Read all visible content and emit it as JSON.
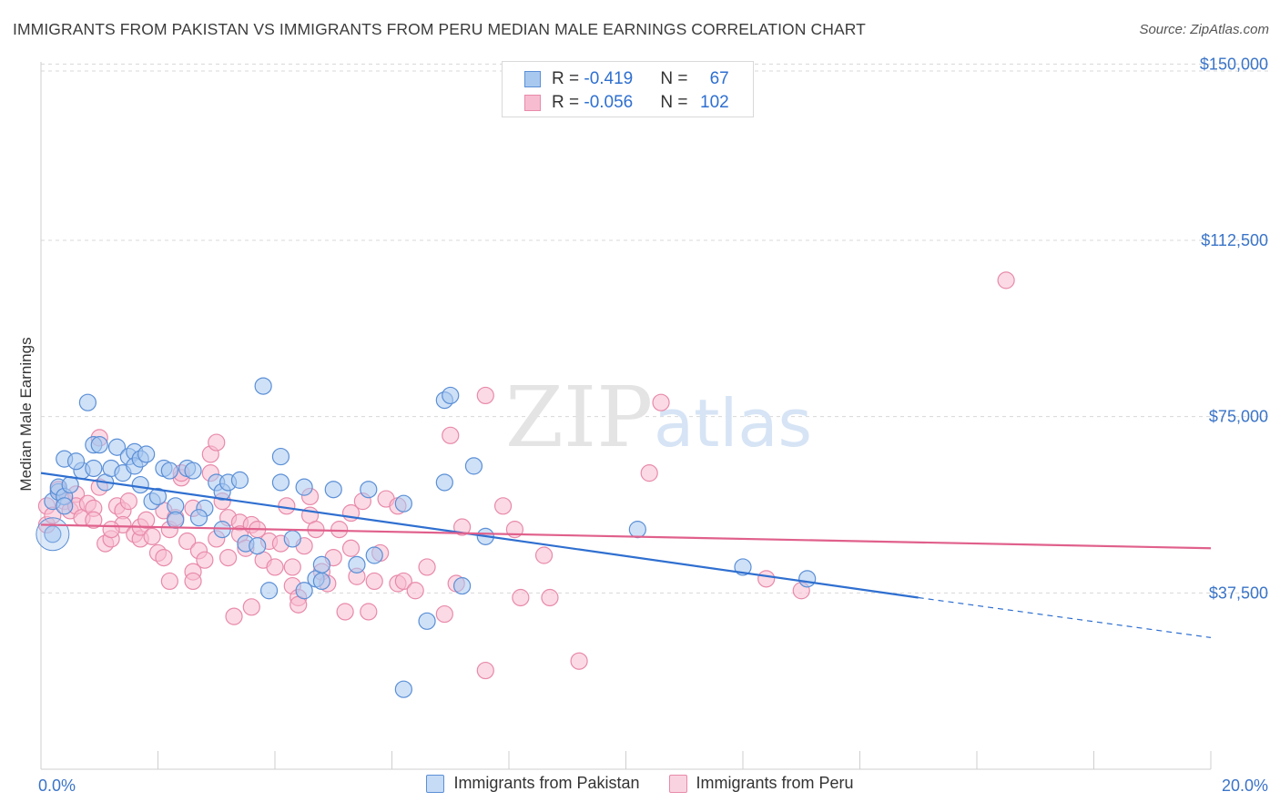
{
  "title": "IMMIGRANTS FROM PAKISTAN VS IMMIGRANTS FROM PERU MEDIAN MALE EARNINGS CORRELATION CHART",
  "source": "Source: ZipAtlas.com",
  "watermark": {
    "zip": "ZIP",
    "atlas": "atlas"
  },
  "legend": {
    "rows": [
      {
        "r_label": "R = ",
        "r_value": "-0.419",
        "n_label": "N = ",
        "n_value": "67"
      },
      {
        "r_label": "R = ",
        "r_value": "-0.056",
        "n_label": "N = ",
        "n_value": "102"
      }
    ]
  },
  "colors": {
    "pakistan_fill": "#a8c8f0",
    "pakistan_stroke": "#5b8fd6",
    "pakistan_line": "#2f6fd0",
    "peru_fill": "#f7bcd0",
    "peru_stroke": "#e88aaa",
    "peru_line": "#e0608c",
    "grid": "#d8d8d8",
    "tick_label": "#3a74c8"
  },
  "chart_data": {
    "type": "scatter",
    "title": "IMMIGRANTS FROM PAKISTAN VS IMMIGRANTS FROM PERU MEDIAN MALE EARNINGS CORRELATION CHART",
    "xlabel": "",
    "ylabel": "Median Male Earnings",
    "xlim": [
      0,
      20
    ],
    "ylim": [
      0,
      152000
    ],
    "x_tick_labels": [
      "0.0%",
      "20.0%"
    ],
    "y_ticks": [
      37500,
      75000,
      112500,
      150000
    ],
    "y_tick_labels": [
      "$37,500",
      "$75,000",
      "$112,500",
      "$150,000"
    ],
    "grid": true,
    "legend_position": "top-center",
    "series": [
      {
        "name": "Immigrants from Pakistan",
        "r": -0.419,
        "n": 67,
        "trend": {
          "x0": 0,
          "y0": 63000,
          "x1": 15,
          "y1": 36500,
          "dashed_to_x": 20,
          "dashed_to_y": 28000
        },
        "points": [
          [
            0.2,
            50000
          ],
          [
            0.2,
            57000
          ],
          [
            0.3,
            59000
          ],
          [
            0.3,
            60000
          ],
          [
            0.4,
            58000
          ],
          [
            0.5,
            60500
          ],
          [
            0.4,
            56000
          ],
          [
            0.8,
            78000
          ],
          [
            0.4,
            66000
          ],
          [
            0.7,
            63500
          ],
          [
            0.9,
            64000
          ],
          [
            0.6,
            65500
          ],
          [
            0.9,
            69000
          ],
          [
            1.0,
            69000
          ],
          [
            1.1,
            61000
          ],
          [
            1.2,
            64000
          ],
          [
            1.3,
            68500
          ],
          [
            1.4,
            63000
          ],
          [
            1.5,
            66500
          ],
          [
            1.6,
            67500
          ],
          [
            1.6,
            64500
          ],
          [
            1.7,
            66000
          ],
          [
            1.8,
            67000
          ],
          [
            1.7,
            60500
          ],
          [
            1.9,
            57000
          ],
          [
            2.0,
            58000
          ],
          [
            2.1,
            64000
          ],
          [
            2.2,
            63500
          ],
          [
            2.3,
            56000
          ],
          [
            2.5,
            64000
          ],
          [
            2.6,
            63500
          ],
          [
            3.0,
            61000
          ],
          [
            3.1,
            59000
          ],
          [
            2.8,
            55500
          ],
          [
            2.3,
            53000
          ],
          [
            2.7,
            53500
          ],
          [
            3.1,
            51000
          ],
          [
            3.2,
            61000
          ],
          [
            3.4,
            61500
          ],
          [
            3.5,
            48000
          ],
          [
            3.7,
            47500
          ],
          [
            3.8,
            81500
          ],
          [
            3.9,
            38000
          ],
          [
            4.1,
            66500
          ],
          [
            4.1,
            61000
          ],
          [
            4.3,
            49000
          ],
          [
            4.5,
            60000
          ],
          [
            4.5,
            38000
          ],
          [
            4.7,
            40500
          ],
          [
            4.8,
            40000
          ],
          [
            4.8,
            43500
          ],
          [
            5.0,
            59500
          ],
          [
            5.4,
            43500
          ],
          [
            5.7,
            45500
          ],
          [
            5.6,
            59500
          ],
          [
            6.2,
            56500
          ],
          [
            6.6,
            31500
          ],
          [
            6.9,
            61000
          ],
          [
            6.9,
            78500
          ],
          [
            7.0,
            79500
          ],
          [
            7.2,
            39000
          ],
          [
            7.4,
            64500
          ],
          [
            7.6,
            49500
          ],
          [
            10.2,
            51000
          ],
          [
            12.0,
            43000
          ],
          [
            13.1,
            40500
          ],
          [
            6.2,
            17000
          ]
        ]
      },
      {
        "name": "Immigrants from Peru",
        "r": -0.056,
        "n": 102,
        "trend": {
          "x0": 0,
          "y0": 52000,
          "x1": 20,
          "y1": 47000
        },
        "points": [
          [
            0.1,
            56000
          ],
          [
            0.1,
            52000
          ],
          [
            0.2,
            54000
          ],
          [
            0.3,
            59500
          ],
          [
            0.4,
            57000
          ],
          [
            0.5,
            55000
          ],
          [
            0.6,
            58500
          ],
          [
            0.6,
            56000
          ],
          [
            0.7,
            53500
          ],
          [
            0.8,
            56500
          ],
          [
            0.9,
            55500
          ],
          [
            1.0,
            60000
          ],
          [
            0.9,
            53000
          ],
          [
            1.0,
            70500
          ],
          [
            1.1,
            48000
          ],
          [
            1.2,
            49000
          ],
          [
            1.3,
            56000
          ],
          [
            1.4,
            55000
          ],
          [
            1.4,
            52000
          ],
          [
            1.5,
            57000
          ],
          [
            1.6,
            50000
          ],
          [
            1.7,
            49000
          ],
          [
            1.7,
            51500
          ],
          [
            1.8,
            53000
          ],
          [
            1.9,
            49500
          ],
          [
            2.0,
            46000
          ],
          [
            2.1,
            45000
          ],
          [
            2.1,
            55000
          ],
          [
            2.2,
            40000
          ],
          [
            2.2,
            51000
          ],
          [
            2.3,
            53500
          ],
          [
            2.4,
            62000
          ],
          [
            2.4,
            63000
          ],
          [
            2.5,
            48500
          ],
          [
            2.6,
            55500
          ],
          [
            2.6,
            42000
          ],
          [
            2.6,
            40000
          ],
          [
            2.7,
            46500
          ],
          [
            2.8,
            44500
          ],
          [
            2.9,
            63000
          ],
          [
            2.9,
            67000
          ],
          [
            3.0,
            69500
          ],
          [
            3.0,
            49000
          ],
          [
            3.1,
            57000
          ],
          [
            3.2,
            45000
          ],
          [
            3.2,
            53500
          ],
          [
            3.3,
            32500
          ],
          [
            3.4,
            52500
          ],
          [
            3.4,
            50000
          ],
          [
            3.5,
            47000
          ],
          [
            3.6,
            52000
          ],
          [
            3.7,
            51000
          ],
          [
            3.8,
            44500
          ],
          [
            3.9,
            48500
          ],
          [
            4.0,
            43000
          ],
          [
            4.1,
            48000
          ],
          [
            4.2,
            56000
          ],
          [
            4.3,
            43000
          ],
          [
            4.3,
            39000
          ],
          [
            4.4,
            36500
          ],
          [
            4.4,
            35000
          ],
          [
            4.5,
            47500
          ],
          [
            4.6,
            54000
          ],
          [
            4.6,
            58000
          ],
          [
            4.7,
            51000
          ],
          [
            4.8,
            42000
          ],
          [
            4.9,
            39500
          ],
          [
            5.0,
            45000
          ],
          [
            5.1,
            51000
          ],
          [
            5.2,
            33500
          ],
          [
            5.3,
            47000
          ],
          [
            5.3,
            54500
          ],
          [
            5.4,
            41000
          ],
          [
            5.5,
            57000
          ],
          [
            5.6,
            33500
          ],
          [
            5.7,
            40000
          ],
          [
            5.8,
            46000
          ],
          [
            5.9,
            57500
          ],
          [
            6.1,
            39500
          ],
          [
            6.1,
            56000
          ],
          [
            6.2,
            40000
          ],
          [
            6.4,
            38000
          ],
          [
            6.6,
            43000
          ],
          [
            6.9,
            33000
          ],
          [
            7.0,
            71000
          ],
          [
            7.1,
            39500
          ],
          [
            7.2,
            51500
          ],
          [
            7.6,
            79500
          ],
          [
            7.6,
            21000
          ],
          [
            7.9,
            56000
          ],
          [
            8.1,
            51000
          ],
          [
            8.2,
            36500
          ],
          [
            8.6,
            45500
          ],
          [
            8.7,
            36500
          ],
          [
            9.2,
            23000
          ],
          [
            10.4,
            63000
          ],
          [
            10.6,
            78000
          ],
          [
            12.4,
            40500
          ],
          [
            13.0,
            38000
          ],
          [
            16.5,
            104000
          ],
          [
            1.2,
            51000
          ],
          [
            3.6,
            34500
          ]
        ]
      }
    ]
  },
  "bottom_legend": [
    "Immigrants from Pakistan",
    "Immigrants from Peru"
  ]
}
